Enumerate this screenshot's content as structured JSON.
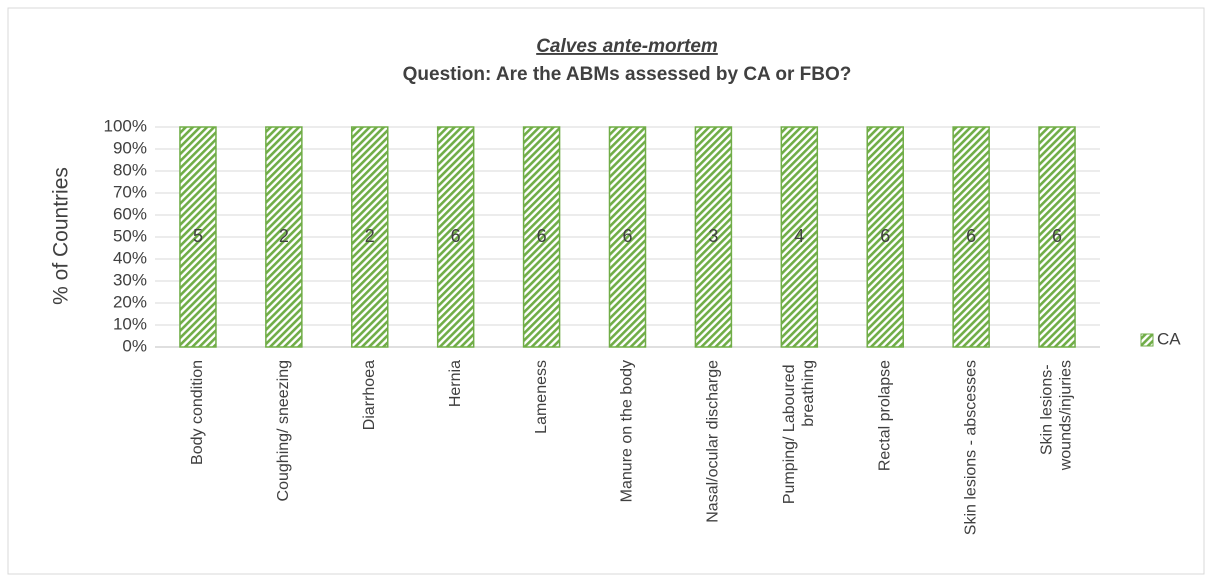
{
  "chart_data": {
    "type": "bar",
    "title": "Calves ante-mortem",
    "subtitle": "Question: Are the ABMs assessed by CA or FBO?",
    "y_label": "% of Countries",
    "categories": [
      "Body condition",
      "Coughing/ sneezing",
      "Diarrhoea",
      "Hernia",
      "Lameness",
      "Manure on the body",
      "Nasal/ocular discharge",
      "Pumping/ Laboured breathing",
      "Rectal prolapse",
      "Skin lesions - abscesses",
      "Skin lesions- wounds/injuries"
    ],
    "series": [
      {
        "name": "CA",
        "color": "#70ad47",
        "values": [
          100,
          100,
          100,
          100,
          100,
          100,
          100,
          100,
          100,
          100,
          100
        ],
        "counts": [
          5,
          2,
          2,
          6,
          6,
          6,
          3,
          4,
          6,
          6,
          6
        ]
      }
    ],
    "ylim": [
      0,
      100
    ],
    "yticks": [
      {
        "value": 0,
        "label": "0%"
      },
      {
        "value": 10,
        "label": "10%"
      },
      {
        "value": 20,
        "label": "20%"
      },
      {
        "value": 30,
        "label": "30%"
      },
      {
        "value": 40,
        "label": "40%"
      },
      {
        "value": 50,
        "label": "50%"
      },
      {
        "value": 60,
        "label": "60%"
      },
      {
        "value": 70,
        "label": "70%"
      },
      {
        "value": 80,
        "label": "80%"
      },
      {
        "value": 90,
        "label": "90%"
      },
      {
        "value": 100,
        "label": "100%"
      }
    ],
    "grid": true,
    "legend": "right"
  }
}
